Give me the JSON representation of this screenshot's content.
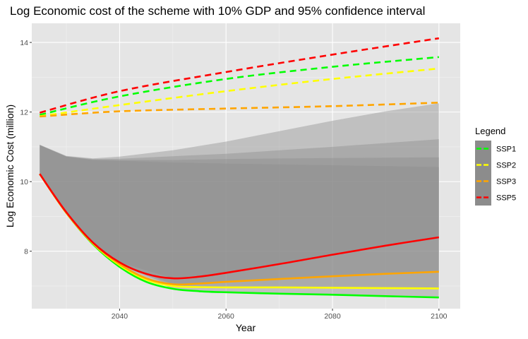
{
  "chart_data": {
    "type": "line",
    "title": "Log Economic cost of the scheme with 10% GDP and 95% confidence interval",
    "xlabel": "Year",
    "ylabel": "Log Economic Cost (million)",
    "xlim": [
      2023.5,
      2104
    ],
    "ylim": [
      6.35,
      14.55
    ],
    "xticks": [
      2040,
      2060,
      2080,
      2100
    ],
    "yticks": [
      8,
      10,
      12,
      14
    ],
    "grid": true,
    "legend": {
      "title": "Legend",
      "position": "right",
      "entries": [
        "SSP1",
        "SSP2",
        "SSP3",
        "SSP5"
      ]
    },
    "colors": {
      "SSP1": "#00ff00",
      "SSP2": "#ffff00",
      "SSP3": "#ffa500",
      "SSP5": "#ff0000",
      "panel": "#e5e5e5",
      "ribbon": "#8c8c8c"
    },
    "series": [
      {
        "name": "SSP1",
        "color": "#00ff00",
        "dashed": {
          "x": [
            2025,
            2040,
            2060,
            2080,
            2100
          ],
          "y": [
            11.92,
            12.45,
            12.95,
            13.3,
            13.58
          ]
        },
        "solid": {
          "x": [
            2025,
            2030,
            2035,
            2040,
            2045,
            2050,
            2055,
            2060,
            2070,
            2080,
            2090,
            2100
          ],
          "y": [
            10.22,
            9.1,
            8.2,
            7.55,
            7.12,
            6.92,
            6.85,
            6.82,
            6.78,
            6.75,
            6.71,
            6.67
          ]
        },
        "ci_upper": {
          "x": [
            2025,
            2030,
            2035,
            2040,
            2050,
            2060,
            2080,
            2100
          ],
          "y": [
            11.05,
            10.72,
            10.62,
            10.6,
            10.55,
            10.52,
            10.47,
            10.42
          ]
        },
        "ci_lower": {
          "x": [
            2025,
            2030,
            2035,
            2040,
            2050,
            2060,
            2080,
            2100
          ],
          "y": [
            10.22,
            9.1,
            8.2,
            7.55,
            6.92,
            6.82,
            6.75,
            6.67
          ]
        }
      },
      {
        "name": "SSP2",
        "color": "#ffff00",
        "dashed": {
          "x": [
            2025,
            2040,
            2060,
            2080,
            2100
          ],
          "y": [
            11.88,
            12.2,
            12.6,
            12.95,
            13.25
          ]
        },
        "solid": {
          "x": [
            2025,
            2030,
            2035,
            2040,
            2045,
            2050,
            2055,
            2060,
            2070,
            2080,
            2090,
            2100
          ],
          "y": [
            10.22,
            9.1,
            8.22,
            7.6,
            7.18,
            7.0,
            6.97,
            6.96,
            6.96,
            6.95,
            6.94,
            6.93
          ]
        },
        "ci_upper": {
          "x": [
            2025,
            2030,
            2035,
            2040,
            2050,
            2060,
            2080,
            2100
          ],
          "y": [
            11.05,
            10.72,
            10.63,
            10.62,
            10.62,
            10.65,
            10.68,
            10.7
          ]
        },
        "ci_lower": {
          "x": [
            2025,
            2030,
            2035,
            2040,
            2050,
            2060,
            2080,
            2100
          ],
          "y": [
            10.22,
            9.1,
            8.22,
            7.6,
            7.0,
            6.96,
            6.95,
            6.93
          ]
        }
      },
      {
        "name": "SSP3",
        "color": "#ffa500",
        "dashed": {
          "x": [
            2025,
            2040,
            2060,
            2080,
            2100
          ],
          "y": [
            11.87,
            12.02,
            12.1,
            12.17,
            12.27
          ]
        },
        "solid": {
          "x": [
            2025,
            2030,
            2035,
            2040,
            2045,
            2050,
            2055,
            2060,
            2070,
            2080,
            2090,
            2100
          ],
          "y": [
            10.22,
            9.1,
            8.23,
            7.63,
            7.22,
            7.05,
            7.07,
            7.12,
            7.2,
            7.28,
            7.35,
            7.41
          ]
        },
        "ci_upper": {
          "x": [
            2025,
            2030,
            2035,
            2040,
            2050,
            2060,
            2080,
            2100
          ],
          "y": [
            11.05,
            10.73,
            10.65,
            10.66,
            10.73,
            10.8,
            11.0,
            11.22
          ]
        },
        "ci_lower": {
          "x": [
            2025,
            2030,
            2035,
            2040,
            2050,
            2060,
            2080,
            2100
          ],
          "y": [
            10.22,
            9.1,
            8.23,
            7.63,
            7.05,
            7.12,
            7.28,
            7.41
          ]
        }
      },
      {
        "name": "SSP5",
        "color": "#ff0000",
        "dashed": {
          "x": [
            2025,
            2040,
            2060,
            2080,
            2100
          ],
          "y": [
            11.98,
            12.6,
            13.15,
            13.65,
            14.12
          ]
        },
        "solid": {
          "x": [
            2025,
            2030,
            2035,
            2040,
            2045,
            2050,
            2055,
            2060,
            2070,
            2080,
            2090,
            2100
          ],
          "y": [
            10.22,
            9.12,
            8.25,
            7.68,
            7.35,
            7.22,
            7.27,
            7.38,
            7.63,
            7.9,
            8.16,
            8.4
          ]
        },
        "ci_upper": {
          "x": [
            2025,
            2030,
            2035,
            2040,
            2050,
            2060,
            2070,
            2080,
            2090,
            2100
          ],
          "y": [
            11.06,
            10.74,
            10.67,
            10.72,
            10.9,
            11.15,
            11.45,
            11.75,
            12.02,
            12.25
          ]
        },
        "ci_lower": {
          "x": [
            2025,
            2030,
            2035,
            2040,
            2050,
            2060,
            2080,
            2100
          ],
          "y": [
            10.22,
            9.12,
            8.25,
            7.68,
            7.22,
            7.38,
            7.9,
            8.4
          ]
        }
      }
    ]
  }
}
